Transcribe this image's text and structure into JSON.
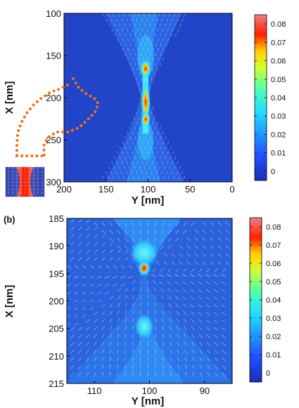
{
  "chart_data": [
    {
      "type": "heatmap",
      "panel_label": "",
      "xlabel": "Y [nm]",
      "ylabel": "X [nm]",
      "x_ticks": [
        200,
        150,
        100,
        50,
        0
      ],
      "y_ticks": [
        100,
        150,
        200,
        250,
        300
      ],
      "xlim": [
        200,
        0
      ],
      "ylim": [
        100,
        300
      ],
      "colorbar": {
        "ticks": [
          0,
          0.01,
          0.02,
          0.03,
          0.04,
          0.05,
          0.06,
          0.07,
          0.08
        ],
        "range": [
          -0.005,
          0.085
        ]
      },
      "field": "vector arrows over scalar map; bowtie gap centered near Y=100 nm, X=200 nm",
      "hotspot_values": [
        {
          "y_nm": 100,
          "x_nm": 170,
          "value": 0.075
        },
        {
          "y_nm": 100,
          "x_nm": 200,
          "value": 0.08
        },
        {
          "y_nm": 100,
          "x_nm": 225,
          "value": 0.07
        }
      ],
      "background_value": 0
    },
    {
      "type": "heatmap",
      "panel_label": "(b)",
      "xlabel": "Y [nm]",
      "ylabel": "X [nm]",
      "x_ticks": [
        110,
        100,
        90
      ],
      "y_ticks": [
        185,
        190,
        195,
        200,
        205,
        210,
        215
      ],
      "xlim": [
        115,
        85
      ],
      "ylim": [
        185,
        215
      ],
      "colorbar": {
        "ticks": [
          0,
          0.01,
          0.02,
          0.03,
          0.04,
          0.05,
          0.06,
          0.07,
          0.08
        ],
        "range": [
          -0.005,
          0.085
        ]
      },
      "field": "zoomed vector arrows over scalar map near gap",
      "hotspot_values": [
        {
          "y_nm": 100,
          "x_nm": 195,
          "value": 0.08
        },
        {
          "y_nm": 100,
          "x_nm": 203,
          "value": 0.03
        }
      ],
      "background_value": 0.01
    }
  ],
  "colors": {
    "colormap": [
      "#00008f",
      "#0000ff",
      "#0080ff",
      "#00ffff",
      "#80ff80",
      "#ffff00",
      "#ff8000",
      "#ff0000",
      "#f08080"
    ],
    "arrow": "#c8c8a0",
    "inset_outline": "#f07020"
  },
  "icons": {
    "inset": "bowtie-thumbnail"
  }
}
